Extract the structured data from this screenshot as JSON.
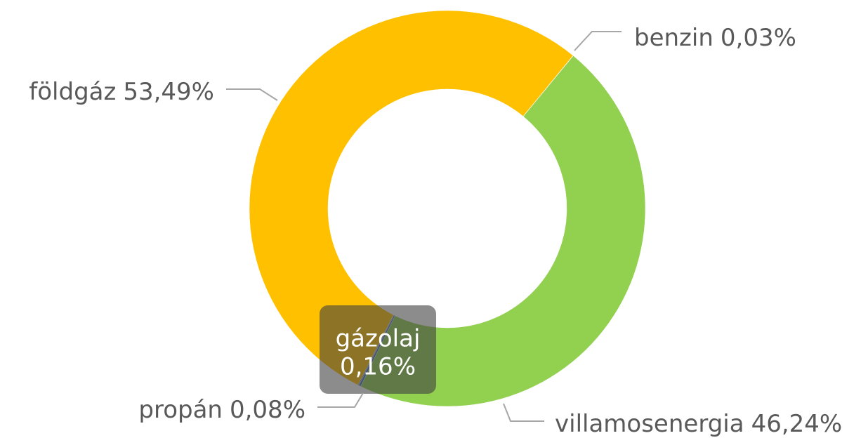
{
  "chart_data": {
    "type": "donut",
    "categories": [
      "benzin",
      "villamosenergia",
      "gázolaj",
      "propán",
      "földgáz"
    ],
    "values": [
      0.03,
      46.24,
      0.16,
      0.08,
      53.49
    ],
    "value_labels": [
      "0,03%",
      "46,24%",
      "0,16%",
      "0,08%",
      "53,49%"
    ],
    "colors": [
      "#A5A5A5",
      "#92D050",
      "#4472C4",
      "#5B7FA8",
      "#FFC000"
    ]
  }
}
